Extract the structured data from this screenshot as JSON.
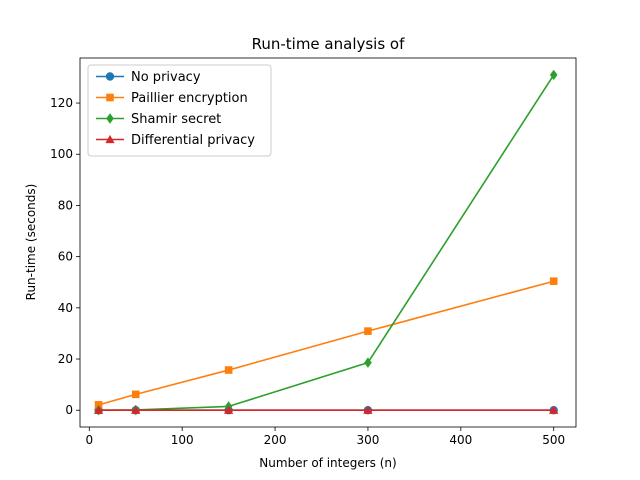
{
  "chart_data": {
    "type": "line",
    "title": "Run-time analysis of",
    "xlabel": "Number of integers (n)",
    "ylabel": "Run-time (seconds)",
    "xlim": [
      -10,
      524
    ],
    "ylim": [
      -6.55,
      137.6
    ],
    "xticks": [
      0,
      100,
      200,
      300,
      400,
      500
    ],
    "yticks": [
      0,
      20,
      40,
      60,
      80,
      100,
      120
    ],
    "grid": false,
    "legend_position": "upper-left",
    "series": [
      {
        "name": "No privacy",
        "color": "#1f77b4",
        "marker": "circle",
        "x": [
          10,
          50,
          150,
          300,
          500
        ],
        "y": [
          0.0,
          0.0,
          0.0,
          0.0,
          0.0
        ]
      },
      {
        "name": "Paillier encryption",
        "color": "#ff7f0e",
        "marker": "square",
        "x": [
          10,
          50,
          150,
          300,
          500
        ],
        "y": [
          2.1,
          6.2,
          15.7,
          30.9,
          50.4
        ]
      },
      {
        "name": "Shamir secret",
        "color": "#2ca02c",
        "marker": "diamond",
        "x": [
          10,
          50,
          150,
          300,
          500
        ],
        "y": [
          0.0,
          0.1,
          1.5,
          18.6,
          131.0
        ]
      },
      {
        "name": "Differential privacy",
        "color": "#d62728",
        "marker": "triangle",
        "x": [
          10,
          50,
          150,
          300,
          500
        ],
        "y": [
          0.0,
          0.0,
          0.0,
          0.0,
          0.0
        ]
      }
    ]
  }
}
